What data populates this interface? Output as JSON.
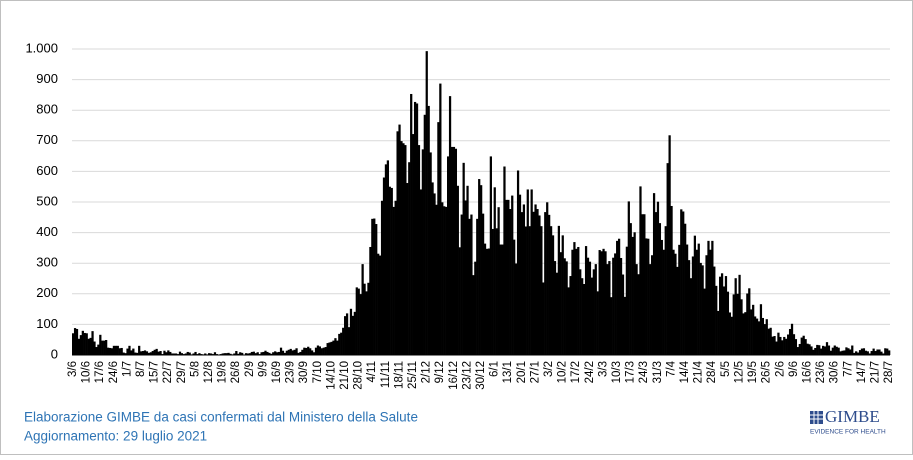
{
  "chart_data": {
    "type": "bar",
    "color": "#000000",
    "categories": [
      "3/6",
      null,
      null,
      null,
      null,
      null,
      null,
      "10/6",
      null,
      null,
      null,
      null,
      null,
      null,
      "17/6",
      null,
      null,
      null,
      null,
      null,
      null,
      "24/6",
      null,
      null,
      null,
      null,
      null,
      null,
      "1/7",
      null,
      null,
      null,
      null,
      null,
      null,
      "8/7",
      null,
      null,
      null,
      null,
      null,
      null,
      "15/7",
      null,
      null,
      null,
      null,
      null,
      null,
      "22/7",
      null,
      null,
      null,
      null,
      null,
      null,
      "29/7",
      null,
      null,
      null,
      null,
      null,
      null,
      "5/8",
      null,
      null,
      null,
      null,
      null,
      null,
      "12/8",
      null,
      null,
      null,
      null,
      null,
      null,
      "19/8",
      null,
      null,
      null,
      null,
      null,
      null,
      "26/8",
      null,
      null,
      null,
      null,
      null,
      null,
      "2/9",
      null,
      null,
      null,
      null,
      null,
      null,
      "9/9",
      null,
      null,
      null,
      null,
      null,
      null,
      "16/9",
      null,
      null,
      null,
      null,
      null,
      null,
      "23/9",
      null,
      null,
      null,
      null,
      null,
      null,
      "30/9",
      null,
      null,
      null,
      null,
      null,
      null,
      "7/10",
      null,
      null,
      null,
      null,
      null,
      null,
      "14/10",
      null,
      null,
      null,
      null,
      null,
      null,
      "21/10",
      null,
      null,
      null,
      null,
      null,
      null,
      "28/10",
      null,
      null,
      null,
      null,
      null,
      null,
      "4/11",
      null,
      null,
      null,
      null,
      null,
      null,
      "11/11",
      null,
      null,
      null,
      null,
      null,
      null,
      "18/11",
      null,
      null,
      null,
      null,
      null,
      null,
      "25/11",
      null,
      null,
      null,
      null,
      null,
      null,
      "2/12",
      null,
      null,
      null,
      null,
      null,
      null,
      "9/12",
      null,
      null,
      null,
      null,
      null,
      null,
      "16/12",
      null,
      null,
      null,
      null,
      null,
      null,
      "23/12",
      null,
      null,
      null,
      null,
      null,
      null,
      "30/12",
      null,
      null,
      null,
      null,
      null,
      null,
      "6/1",
      null,
      null,
      null,
      null,
      null,
      null,
      "13/1",
      null,
      null,
      null,
      null,
      null,
      null,
      "20/1",
      null,
      null,
      null,
      null,
      null,
      null,
      "27/1",
      null,
      null,
      null,
      null,
      null,
      null,
      "3/2",
      null,
      null,
      null,
      null,
      null,
      null,
      "10/2",
      null,
      null,
      null,
      null,
      null,
      null,
      "17/2",
      null,
      null,
      null,
      null,
      null,
      null,
      "24/2",
      null,
      null,
      null,
      null,
      null,
      null,
      "3/3",
      null,
      null,
      null,
      null,
      null,
      null,
      "10/3",
      null,
      null,
      null,
      null,
      null,
      null,
      "17/3",
      null,
      null,
      null,
      null,
      null,
      null,
      "24/3",
      null,
      null,
      null,
      null,
      null,
      null,
      "31/3",
      null,
      null,
      null,
      null,
      null,
      null,
      "7/4",
      null,
      null,
      null,
      null,
      null,
      null,
      "14/4",
      null,
      null,
      null,
      null,
      null,
      null,
      "21/4",
      null,
      null,
      null,
      null,
      null,
      null,
      "28/4",
      null,
      null,
      null,
      null,
      null,
      null,
      "5/5",
      null,
      null,
      null,
      null,
      null,
      null,
      "12/5",
      null,
      null,
      null,
      null,
      null,
      null,
      "19/5",
      null,
      null,
      null,
      null,
      null,
      null,
      "26/5",
      null,
      null,
      null,
      null,
      null,
      null,
      "2/6",
      null,
      null,
      null,
      null,
      null,
      null,
      "9/6",
      null,
      null,
      null,
      null,
      null,
      null,
      "16/6",
      null,
      null,
      null,
      null,
      null,
      null,
      "23/6",
      null,
      null,
      null,
      null,
      null,
      null,
      "30/6",
      null,
      null,
      null,
      null,
      null,
      null,
      "7/7",
      null,
      null,
      null,
      null,
      null,
      null,
      "14/7",
      null,
      null,
      null,
      null,
      null,
      null,
      "21/7",
      null,
      null,
      null,
      null,
      null,
      null,
      "28/7"
    ],
    "values": [
      71,
      88,
      85,
      53,
      65,
      79,
      72,
      71,
      53,
      56,
      78,
      44,
      26,
      34,
      66,
      47,
      47,
      49,
      24,
      23,
      22,
      30,
      30,
      30,
      22,
      23,
      8,
      6,
      21,
      30,
      15,
      21,
      8,
      7,
      30,
      12,
      13,
      15,
      12,
      7,
      9,
      13,
      17,
      20,
      11,
      13,
      3,
      14,
      9,
      15,
      10,
      5,
      5,
      5,
      3,
      11,
      6,
      3,
      5,
      10,
      8,
      2,
      5,
      10,
      3,
      6,
      3,
      2,
      5,
      2,
      6,
      5,
      3,
      9,
      3,
      0,
      3,
      5,
      6,
      6,
      7,
      4,
      2,
      5,
      13,
      4,
      9,
      7,
      1,
      6,
      5,
      6,
      10,
      11,
      6,
      9,
      3,
      9,
      10,
      14,
      10,
      7,
      4,
      9,
      12,
      9,
      10,
      24,
      14,
      7,
      14,
      17,
      20,
      15,
      17,
      22,
      7,
      10,
      17,
      24,
      23,
      27,
      22,
      15,
      9,
      24,
      31,
      28,
      22,
      24,
      26,
      39,
      41,
      43,
      47,
      55,
      47,
      69,
      73,
      89,
      127,
      136,
      91,
      151,
      128,
      141,
      221,
      217,
      199,
      297,
      233,
      208,
      236,
      353,
      445,
      446,
      428,
      331,
      325,
      504,
      580,
      623,
      636,
      550,
      546,
      484,
      504,
      731,
      753,
      699,
      692,
      686,
      562,
      630,
      853,
      722,
      827,
      822,
      686,
      541,
      672,
      785,
      993,
      814,
      662,
      564,
      528,
      491,
      761,
      887,
      499,
      486,
      484,
      649,
      846,
      680,
      680,
      674,
      553,
      352,
      459,
      628,
      505,
      553,
      445,
      459,
      261,
      305,
      445,
      575,
      555,
      462,
      364,
      347,
      348,
      649,
      412,
      548,
      414,
      483,
      361,
      361,
      616,
      507,
      507,
      477,
      521,
      377,
      299,
      603,
      524,
      467,
      492,
      420,
      541,
      421,
      541,
      468,
      492,
      477,
      456,
      421,
      237,
      467,
      499,
      458,
      421,
      391,
      307,
      269,
      422,
      336,
      391,
      316,
      306,
      221,
      258,
      344,
      369,
      347,
      353,
      280,
      251,
      232,
      356,
      318,
      305,
      253,
      280,
      297,
      208,
      343,
      339,
      347,
      339,
      297,
      307,
      189,
      318,
      332,
      373,
      380,
      317,
      263,
      190,
      354,
      502,
      431,
      386,
      401,
      297,
      264,
      551,
      460,
      460,
      381,
      380,
      297,
      326,
      529,
      467,
      501,
      431,
      376,
      344,
      421,
      627,
      718,
      487,
      344,
      331,
      288,
      360,
      476,
      469,
      429,
      361,
      310,
      251,
      322,
      390,
      344,
      364,
      301,
      293,
      217,
      326,
      373,
      344,
      373,
      289,
      226,
      144,
      256,
      267,
      224,
      258,
      207,
      139,
      125,
      198,
      251,
      200,
      262,
      182,
      136,
      140,
      201,
      218,
      149,
      164,
      126,
      119,
      110,
      166,
      121,
      101,
      117,
      86,
      89,
      60,
      62,
      44,
      73,
      59,
      48,
      59,
      53,
      67,
      85,
      102,
      68,
      52,
      26,
      36,
      57,
      63,
      52,
      37,
      35,
      28,
      17,
      23,
      33,
      32,
      21,
      30,
      28,
      42,
      31,
      14,
      24,
      31,
      27,
      24,
      12,
      14,
      15,
      25,
      22,
      18,
      31,
      7,
      12,
      8,
      16,
      21,
      22,
      14,
      12,
      5,
      13,
      21,
      13,
      18,
      18,
      11,
      5,
      22,
      21,
      15
    ],
    "ylim": [
      0,
      1000
    ],
    "yticks": [
      0,
      100,
      200,
      300,
      400,
      500,
      600,
      700,
      800,
      900,
      {
        "value": 1000,
        "label": "1.000"
      }
    ],
    "grid": true
  },
  "footer": {
    "source": "Elaborazione GIMBE da casi confermati dal Ministero della Salute",
    "updated": "Aggiornamento: 29 luglio 2021"
  },
  "logo": {
    "name": "GIMBE",
    "tagline": "EVIDENCE FOR HEALTH"
  }
}
